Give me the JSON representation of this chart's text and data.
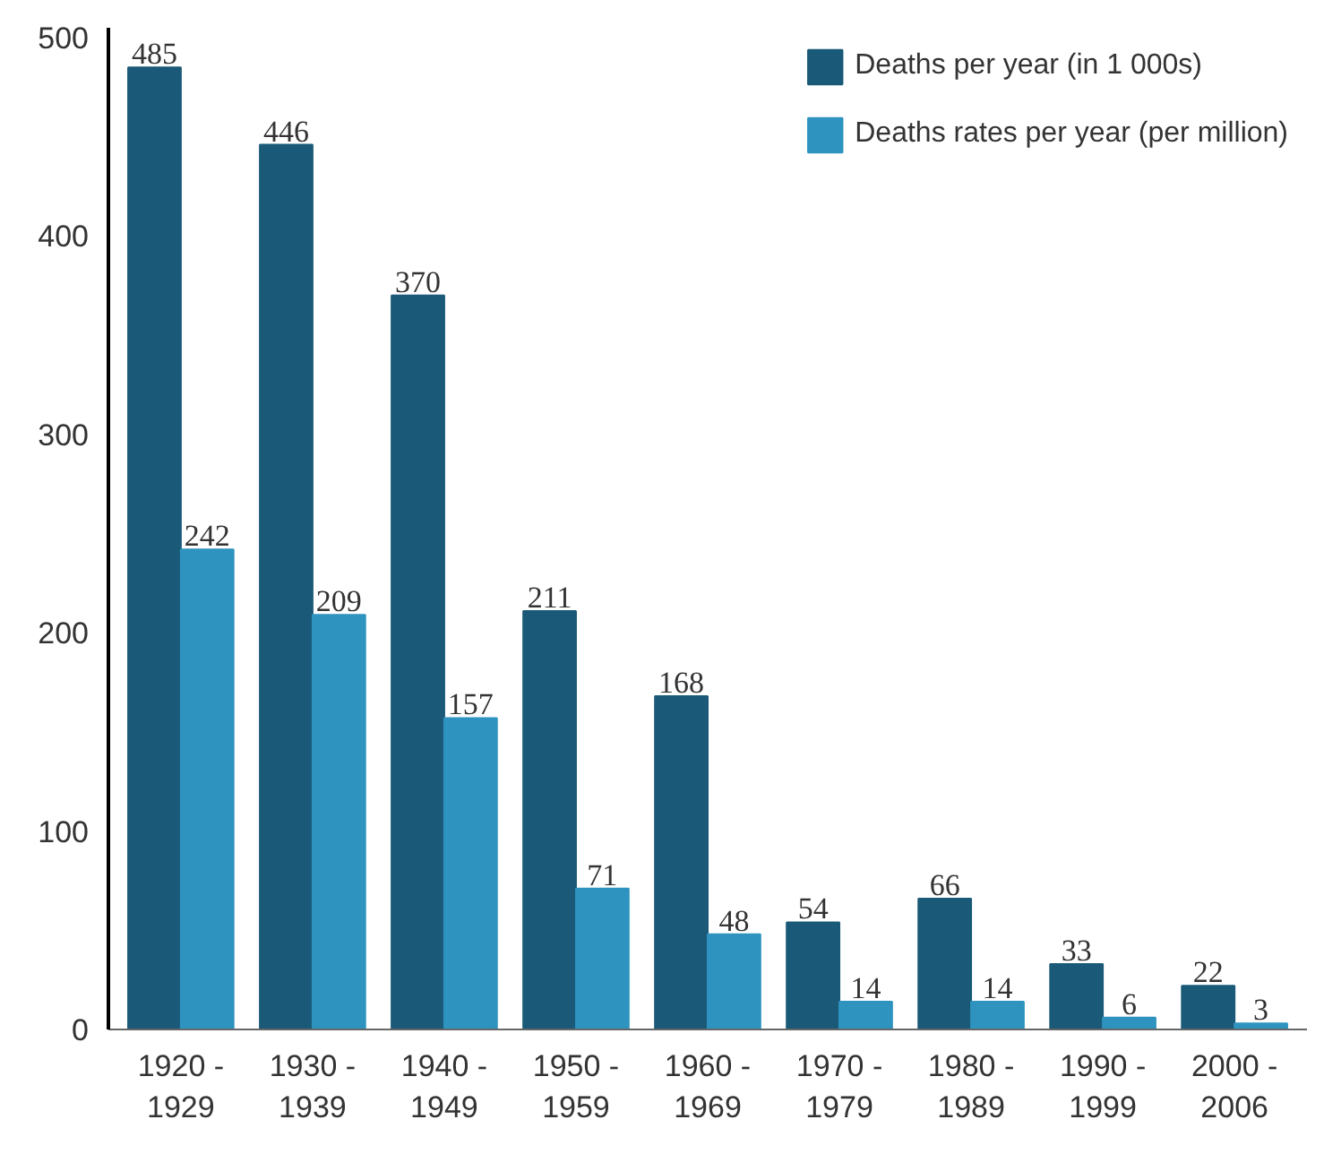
{
  "chart_data": {
    "type": "bar",
    "categories": [
      "1920 -\n1929",
      "1930 -\n1939",
      "1940 -\n1949",
      "1950 -\n1959",
      "1960 -\n1969",
      "1970 -\n1979",
      "1980 -\n1989",
      "1990 -\n1999",
      "2000 -\n2006"
    ],
    "series": [
      {
        "name": "Deaths per year (in 1 000s)",
        "color": "#1a5a78",
        "values": [
          485,
          446,
          370,
          211,
          168,
          54,
          66,
          33,
          22
        ]
      },
      {
        "name": "Deaths rates per year (per million)",
        "color": "#2e93bf",
        "values": [
          242,
          209,
          157,
          71,
          48,
          14,
          14,
          6,
          3
        ]
      }
    ],
    "ylim": [
      0,
      505
    ],
    "yticks": [
      0,
      100,
      200,
      300,
      400,
      500
    ],
    "grid": false,
    "legend": "top right",
    "data_labels": true
  }
}
